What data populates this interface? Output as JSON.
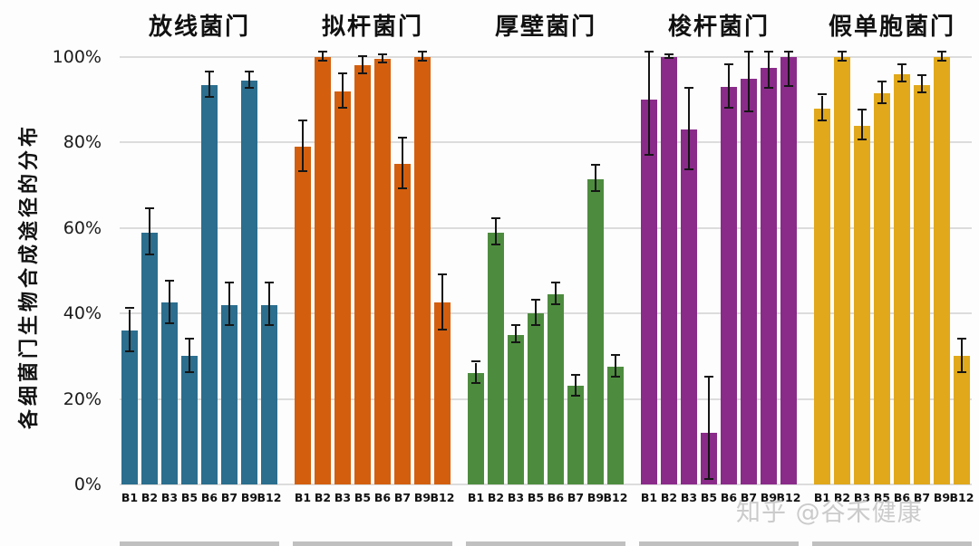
{
  "axis": {
    "y_label": "各细菌门生物合成途径的分布",
    "y_ticks": [
      "0%",
      "20%",
      "40%",
      "60%",
      "80%",
      "100%"
    ],
    "y_tick_values": [
      0,
      20,
      40,
      60,
      80,
      100
    ]
  },
  "watermark": "知乎 @谷禾健康",
  "chart_data": {
    "type": "bar",
    "title": "",
    "xlabel": "",
    "ylabel": "各细菌门生物合成途径的分布",
    "ylim": [
      0,
      100
    ],
    "grid": true,
    "legend_position": "none",
    "error_bars": true,
    "categories": [
      "B1",
      "B2",
      "B3",
      "B5",
      "B6",
      "B7",
      "B9",
      "B12"
    ],
    "groups": [
      {
        "name": "放线菌门",
        "color": "#2b6e8e",
        "values": [
          36,
          59,
          42.5,
          30,
          93.5,
          42,
          94.5,
          42
        ],
        "errors": [
          5,
          5.5,
          5,
          4,
          3,
          5,
          2,
          5
        ]
      },
      {
        "name": "拟杆菌门",
        "color": "#d35f0e",
        "values": [
          79,
          100,
          92,
          98,
          99.5,
          75,
          100,
          42.5
        ],
        "errors": [
          6,
          1,
          4,
          2,
          1,
          6,
          1,
          6.5
        ]
      },
      {
        "name": "厚壁菌门",
        "color": "#4d8c3e",
        "values": [
          26,
          59,
          35,
          40,
          44.5,
          23,
          71.5,
          27.5
        ],
        "errors": [
          2.5,
          3,
          2,
          3,
          2.5,
          2.5,
          3,
          2.5
        ]
      },
      {
        "name": "梭杆菌门",
        "color": "#8a2b8a",
        "values": [
          90,
          100,
          83,
          12,
          93,
          95,
          97.5,
          100
        ],
        "errors": [
          13,
          0.5,
          9.5,
          13,
          5,
          8,
          5,
          7
        ]
      },
      {
        "name": "假单胞菌门",
        "color": "#e0a81a",
        "values": [
          88,
          100,
          84,
          91.5,
          96,
          93.5,
          100,
          30
        ],
        "errors": [
          3,
          1,
          3.5,
          2.5,
          2,
          2,
          1,
          4
        ]
      }
    ]
  }
}
